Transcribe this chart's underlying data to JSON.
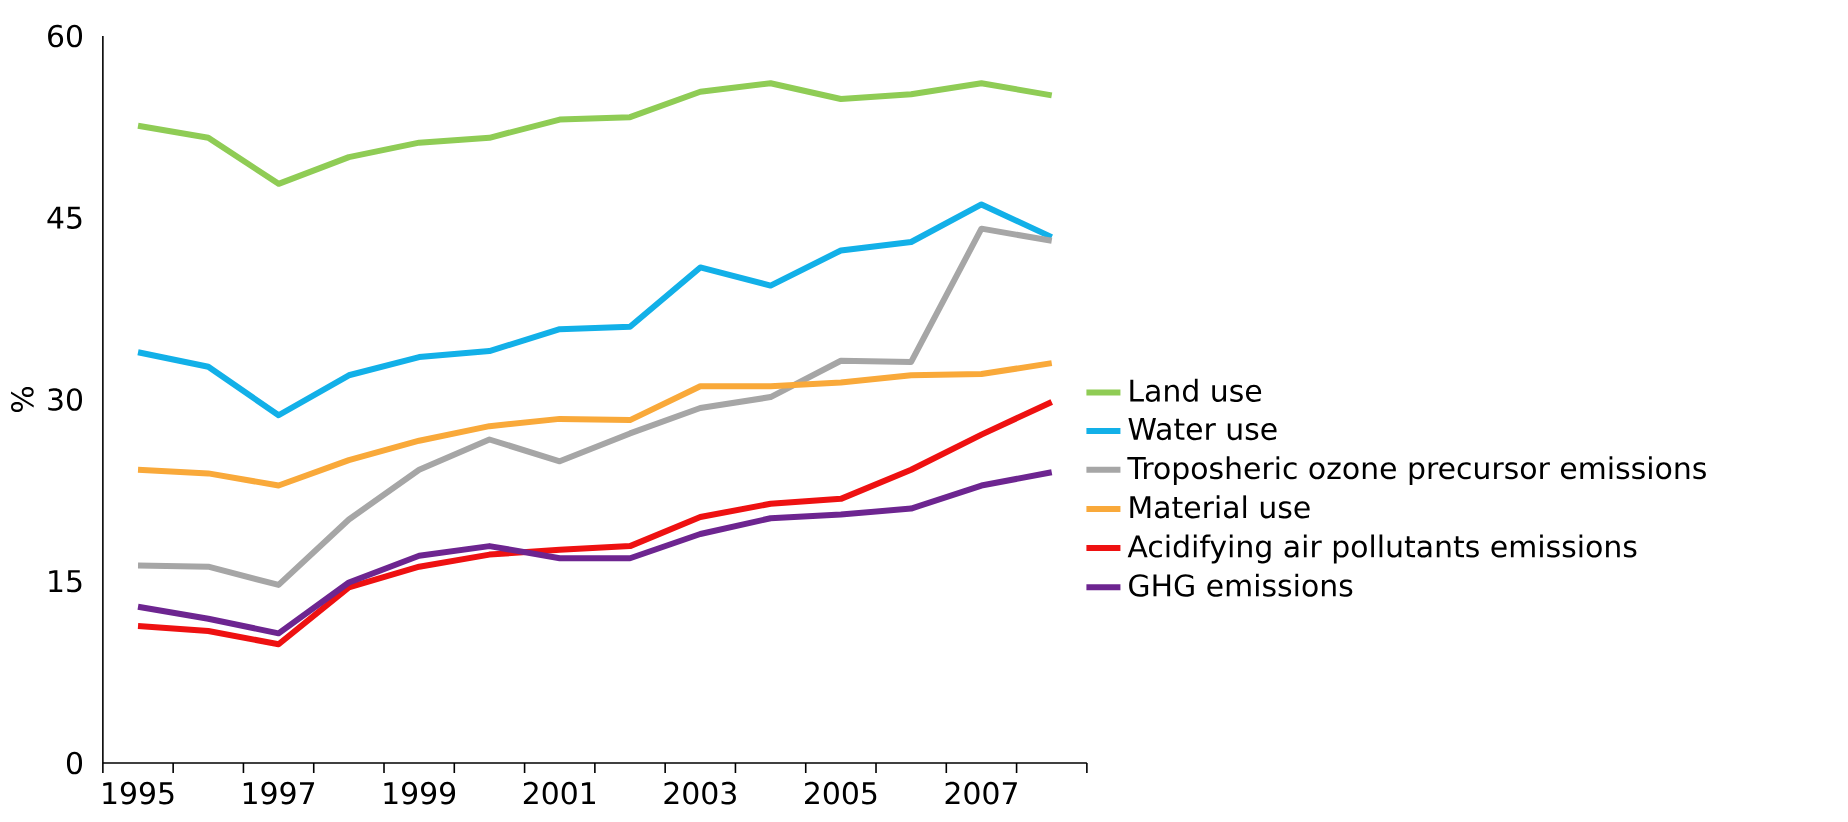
{
  "chart_data": {
    "type": "line",
    "ylabel": "%",
    "categories": [
      "1995",
      null,
      "1997",
      null,
      "1999",
      null,
      "2001",
      null,
      "2003",
      null,
      "2005",
      null,
      "2007",
      null
    ],
    "ylim": [
      0,
      60
    ],
    "yticks": [
      0,
      15,
      30,
      45,
      60
    ],
    "legend": "right",
    "series": [
      {
        "name": "Land use",
        "color": "#8fcc55",
        "values": [
          52.6,
          51.6,
          47.8,
          50.0,
          51.2,
          51.6,
          53.1,
          53.3,
          55.4,
          56.1,
          54.8,
          55.2,
          56.1,
          55.1
        ]
      },
      {
        "name": "Water use",
        "color": "#12b0e8",
        "values": [
          33.9,
          32.7,
          28.7,
          32.0,
          33.5,
          34.0,
          35.8,
          36.0,
          40.9,
          39.4,
          42.3,
          43.0,
          46.1,
          43.4
        ]
      },
      {
        "name": "Troposheric ozone precursor emissions",
        "color": "#a6a6a6",
        "values": [
          16.3,
          16.2,
          14.7,
          20.1,
          24.2,
          26.7,
          24.9,
          27.2,
          29.3,
          30.2,
          33.2,
          33.1,
          44.1,
          43.1
        ]
      },
      {
        "name": "Material use",
        "color": "#f9a93a",
        "values": [
          24.2,
          23.9,
          22.9,
          25.0,
          26.6,
          27.8,
          28.4,
          28.3,
          31.1,
          31.1,
          31.4,
          32.0,
          32.1,
          33.0
        ]
      },
      {
        "name": "Acidifying air pollutants emissions",
        "color": "#ee1111",
        "values": [
          11.3,
          10.9,
          9.8,
          14.5,
          16.2,
          17.2,
          17.6,
          17.9,
          20.3,
          21.4,
          21.8,
          24.2,
          27.1,
          29.8
        ]
      },
      {
        "name": "GHG emissions",
        "color": "#6d2590",
        "values": [
          12.9,
          11.9,
          10.7,
          14.9,
          17.1,
          17.9,
          16.9,
          16.9,
          18.9,
          20.2,
          20.5,
          21.0,
          22.9,
          24.0
        ]
      }
    ]
  }
}
